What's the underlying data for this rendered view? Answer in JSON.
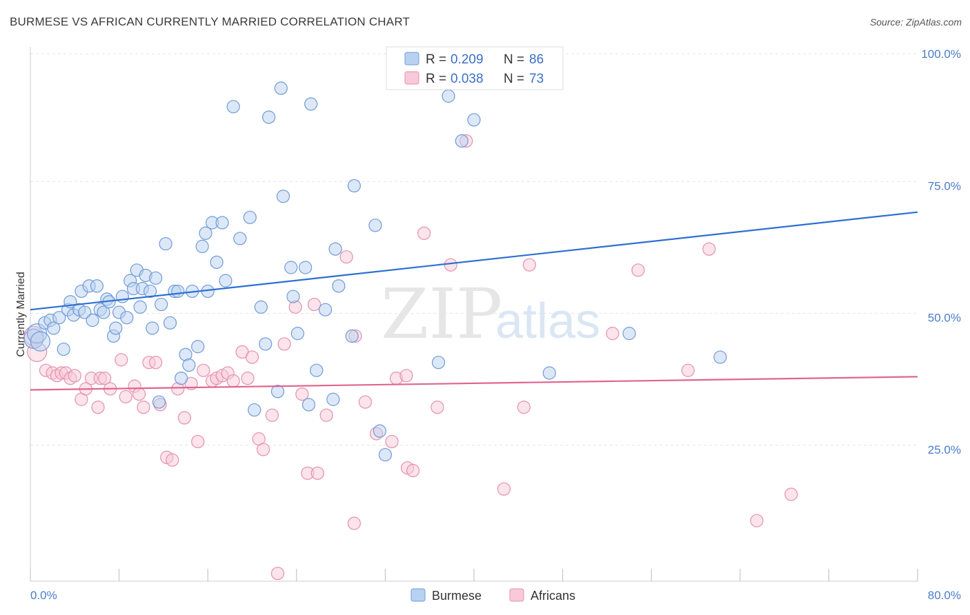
{
  "header": {
    "title": "BURMESE VS AFRICAN CURRENTLY MARRIED CORRELATION CHART",
    "source": "Source: ZipAtlas.com"
  },
  "watermark": {
    "part1": "ZIP",
    "part2": "atlas"
  },
  "legend": {
    "rows": [
      {
        "r_label": "R = ",
        "r_value": "0.209",
        "n_label": "N = ",
        "n_value": "86"
      },
      {
        "r_label": "R = ",
        "r_value": "0.038",
        "n_label": "N = ",
        "n_value": "73"
      }
    ]
  },
  "bottom_legend": {
    "items": [
      "Burmese",
      "Africans"
    ]
  },
  "colors": {
    "burmese_fill": "#b9d1f0",
    "burmese_stroke": "#6f9ad8",
    "burmese_line": "#2b6fd1",
    "africans_fill": "#f8c9d8",
    "africans_stroke": "#e590ac",
    "africans_line": "#e0648f",
    "grid": "#e3e3e3",
    "axis_text": "#4a7cc9"
  },
  "chart_data": {
    "type": "scatter",
    "title": "BURMESE VS AFRICAN CURRENTLY MARRIED CORRELATION CHART",
    "ylabel": "Currently Married",
    "xlim": [
      0,
      80
    ],
    "ylim": [
      0,
      100
    ],
    "x_tick_labels": [
      "0.0%",
      "80.0%"
    ],
    "y_ticks": [
      25,
      50,
      75,
      100
    ],
    "y_tick_labels": [
      "25.0%",
      "50.0%",
      "75.0%",
      "100.0%"
    ],
    "grid": true,
    "legend_position": "top-center",
    "series": [
      {
        "name": "Burmese",
        "R": 0.209,
        "N": 86,
        "trend": {
          "x": [
            0,
            80
          ],
          "y": [
            52.0,
            70.5
          ]
        },
        "points": [
          [
            0.3,
            46.5
          ],
          [
            0.6,
            47.5
          ],
          [
            0.9,
            46.0
          ],
          [
            1.3,
            49.5
          ],
          [
            1.8,
            50.0
          ],
          [
            2.1,
            48.5
          ],
          [
            2.6,
            50.5
          ],
          [
            3.0,
            44.5
          ],
          [
            3.4,
            52.0
          ],
          [
            3.6,
            53.5
          ],
          [
            3.9,
            51.0
          ],
          [
            4.4,
            52.0
          ],
          [
            4.6,
            55.5
          ],
          [
            4.9,
            51.5
          ],
          [
            5.3,
            56.5
          ],
          [
            5.6,
            50.0
          ],
          [
            6.0,
            56.5
          ],
          [
            6.3,
            52.0
          ],
          [
            6.6,
            51.5
          ],
          [
            6.9,
            54.0
          ],
          [
            7.1,
            53.5
          ],
          [
            7.5,
            47.0
          ],
          [
            7.7,
            48.5
          ],
          [
            8.0,
            51.5
          ],
          [
            8.3,
            54.5
          ],
          [
            8.7,
            50.5
          ],
          [
            9.0,
            57.5
          ],
          [
            9.3,
            56.0
          ],
          [
            9.6,
            59.5
          ],
          [
            9.9,
            52.5
          ],
          [
            10.1,
            56.0
          ],
          [
            10.4,
            58.5
          ],
          [
            10.8,
            55.5
          ],
          [
            11.0,
            48.5
          ],
          [
            11.3,
            58.0
          ],
          [
            11.6,
            34.5
          ],
          [
            11.8,
            53.0
          ],
          [
            12.2,
            64.5
          ],
          [
            12.6,
            49.5
          ],
          [
            13.0,
            55.5
          ],
          [
            13.3,
            55.5
          ],
          [
            13.6,
            39.0
          ],
          [
            14.0,
            43.5
          ],
          [
            14.3,
            41.5
          ],
          [
            14.6,
            55.5
          ],
          [
            15.1,
            45.0
          ],
          [
            15.5,
            64.0
          ],
          [
            15.8,
            66.5
          ],
          [
            16.0,
            55.5
          ],
          [
            16.4,
            68.5
          ],
          [
            16.8,
            61.0
          ],
          [
            17.3,
            68.5
          ],
          [
            17.6,
            57.5
          ],
          [
            18.3,
            90.5
          ],
          [
            18.9,
            65.5
          ],
          [
            19.8,
            69.5
          ],
          [
            20.8,
            52.5
          ],
          [
            21.2,
            45.5
          ],
          [
            21.5,
            88.5
          ],
          [
            22.3,
            36.5
          ],
          [
            22.6,
            94.0
          ],
          [
            22.8,
            73.5
          ],
          [
            23.5,
            60.0
          ],
          [
            23.7,
            54.5
          ],
          [
            24.1,
            47.5
          ],
          [
            24.8,
            60.0
          ],
          [
            25.1,
            34.0
          ],
          [
            25.3,
            91.0
          ],
          [
            25.8,
            40.5
          ],
          [
            26.6,
            52.0
          ],
          [
            27.3,
            35.0
          ],
          [
            27.5,
            63.5
          ],
          [
            27.8,
            56.5
          ],
          [
            29.0,
            47.0
          ],
          [
            29.2,
            75.5
          ],
          [
            31.1,
            68.0
          ],
          [
            32.0,
            24.5
          ],
          [
            37.7,
            92.5
          ],
          [
            38.9,
            84.0
          ],
          [
            40.0,
            88.0
          ],
          [
            46.8,
            40.0
          ],
          [
            54.0,
            47.5
          ],
          [
            62.2,
            43.0
          ],
          [
            36.8,
            42.0
          ],
          [
            20.2,
            33.0
          ],
          [
            31.5,
            29.0
          ]
        ]
      },
      {
        "name": "Africans",
        "R": 0.038,
        "N": 73,
        "trend": {
          "x": [
            0,
            80
          ],
          "y": [
            36.8,
            39.3
          ]
        },
        "points": [
          [
            0.3,
            47.0
          ],
          [
            0.6,
            44.0
          ],
          [
            1.4,
            40.5
          ],
          [
            2.0,
            40.0
          ],
          [
            2.4,
            39.5
          ],
          [
            2.8,
            40.0
          ],
          [
            3.2,
            40.0
          ],
          [
            3.6,
            39.0
          ],
          [
            4.0,
            39.5
          ],
          [
            4.6,
            35.0
          ],
          [
            5.0,
            37.0
          ],
          [
            5.5,
            39.0
          ],
          [
            6.1,
            33.5
          ],
          [
            6.3,
            39.0
          ],
          [
            6.7,
            39.0
          ],
          [
            7.2,
            37.0
          ],
          [
            8.2,
            42.5
          ],
          [
            8.6,
            35.5
          ],
          [
            9.4,
            37.5
          ],
          [
            9.8,
            36.0
          ],
          [
            10.2,
            33.5
          ],
          [
            10.7,
            42.0
          ],
          [
            11.3,
            42.0
          ],
          [
            11.7,
            34.0
          ],
          [
            12.3,
            24.0
          ],
          [
            12.8,
            23.5
          ],
          [
            13.3,
            37.0
          ],
          [
            13.9,
            31.5
          ],
          [
            14.5,
            38.0
          ],
          [
            15.1,
            27.0
          ],
          [
            15.6,
            40.5
          ],
          [
            16.4,
            38.5
          ],
          [
            16.8,
            39.0
          ],
          [
            17.3,
            39.5
          ],
          [
            17.8,
            40.0
          ],
          [
            18.3,
            38.5
          ],
          [
            19.1,
            44.0
          ],
          [
            19.6,
            39.0
          ],
          [
            20.0,
            43.0
          ],
          [
            20.6,
            27.5
          ],
          [
            21.0,
            25.5
          ],
          [
            21.8,
            32.0
          ],
          [
            22.3,
            2.0
          ],
          [
            22.9,
            45.5
          ],
          [
            23.9,
            52.5
          ],
          [
            24.5,
            36.0
          ],
          [
            25.0,
            21.0
          ],
          [
            25.6,
            53.0
          ],
          [
            25.9,
            21.0
          ],
          [
            26.7,
            32.0
          ],
          [
            28.5,
            62.0
          ],
          [
            29.2,
            11.5
          ],
          [
            29.3,
            47.0
          ],
          [
            30.2,
            34.5
          ],
          [
            31.2,
            28.5
          ],
          [
            32.6,
            27.0
          ],
          [
            33.0,
            39.0
          ],
          [
            33.9,
            39.5
          ],
          [
            34.0,
            22.0
          ],
          [
            34.5,
            21.5
          ],
          [
            35.5,
            66.5
          ],
          [
            36.7,
            33.5
          ],
          [
            37.9,
            60.5
          ],
          [
            39.3,
            84.0
          ],
          [
            42.7,
            18.0
          ],
          [
            44.5,
            33.5
          ],
          [
            45.0,
            60.5
          ],
          [
            52.5,
            47.5
          ],
          [
            54.8,
            59.5
          ],
          [
            59.3,
            40.5
          ],
          [
            61.2,
            63.5
          ],
          [
            65.5,
            12.0
          ],
          [
            68.6,
            17.0
          ]
        ]
      }
    ]
  }
}
